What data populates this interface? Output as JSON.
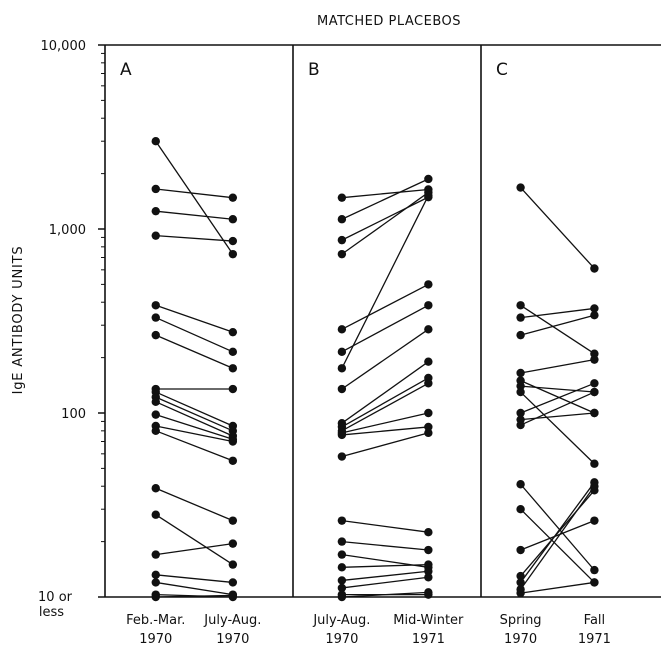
{
  "chart_data": {
    "type": "line",
    "title": "MATCHED PLACEBOS",
    "ylabel": "IgE ANTIBODY UNITS",
    "yscale": "log",
    "ylim": [
      10,
      10000
    ],
    "y_ticks": [
      {
        "value": 10000,
        "label": "10,000"
      },
      {
        "value": 1000,
        "label": "1,000"
      },
      {
        "value": 100,
        "label": "100"
      },
      {
        "value": 10,
        "label": "10 or",
        "label2": "less"
      }
    ],
    "panels": [
      {
        "label": "A",
        "categories": [
          {
            "line1": "Feb.-Mar.",
            "line2": "1970"
          },
          {
            "line1": "July-Aug.",
            "line2": "1970"
          }
        ],
        "pairs": [
          [
            3000,
            730
          ],
          [
            1650,
            1480
          ],
          [
            1250,
            1130
          ],
          [
            920,
            860
          ],
          [
            385,
            275
          ],
          [
            330,
            215
          ],
          [
            265,
            175
          ],
          [
            135,
            135
          ],
          [
            130,
            85
          ],
          [
            122,
            80
          ],
          [
            115,
            75
          ],
          [
            98,
            72
          ],
          [
            85,
            70
          ],
          [
            80,
            55
          ],
          [
            39,
            26
          ],
          [
            28,
            15
          ],
          [
            17,
            19.5
          ],
          [
            13.2,
            12
          ],
          [
            12,
            10.3
          ],
          [
            10.3,
            10
          ],
          [
            10,
            10.2
          ]
        ]
      },
      {
        "label": "B",
        "categories": [
          {
            "line1": "July-Aug.",
            "line2": "1970"
          },
          {
            "line1": "Mid-Winter",
            "line2": "1971"
          }
        ],
        "pairs": [
          [
            1480,
            1640
          ],
          [
            1130,
            1870
          ],
          [
            870,
            1490
          ],
          [
            730,
            1580
          ],
          [
            285,
            500
          ],
          [
            215,
            385
          ],
          [
            175,
            1520
          ],
          [
            135,
            285
          ],
          [
            88,
            190
          ],
          [
            84,
            155
          ],
          [
            80,
            145
          ],
          [
            78,
            100
          ],
          [
            76,
            84
          ],
          [
            58,
            78
          ],
          [
            26,
            22.5
          ],
          [
            20,
            18
          ],
          [
            17,
            14.5
          ],
          [
            14.5,
            15
          ],
          [
            12.3,
            13.8
          ],
          [
            11.2,
            12.8
          ],
          [
            10.3,
            10.3
          ],
          [
            10,
            10.6
          ]
        ]
      },
      {
        "label": "C",
        "categories": [
          {
            "line1": "Spring",
            "line2": "1970"
          },
          {
            "line1": "Fall",
            "line2": "1971"
          }
        ],
        "pairs": [
          [
            1680,
            610
          ],
          [
            385,
            210
          ],
          [
            330,
            370
          ],
          [
            265,
            340
          ],
          [
            165,
            195
          ],
          [
            150,
            100
          ],
          [
            140,
            130
          ],
          [
            130,
            53
          ],
          [
            100,
            145
          ],
          [
            92,
            100
          ],
          [
            86,
            130
          ],
          [
            41,
            14
          ],
          [
            30,
            12
          ],
          [
            18,
            26
          ],
          [
            13,
            38
          ],
          [
            12,
            42
          ],
          [
            11,
            40
          ],
          [
            10.5,
            12
          ]
        ]
      }
    ]
  }
}
